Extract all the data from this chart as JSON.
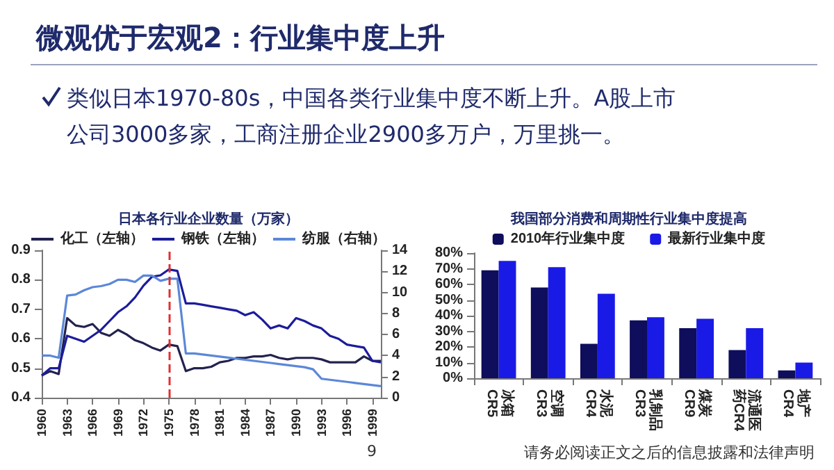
{
  "chart_data": [
    {
      "type": "other",
      "title": "微观优于宏观2：行业集中度上升",
      "annotations": [
        "类似日本1970-80s，中国各类行业集中度不断上升。A股上市公司3000多家，工商注册企业2900多万户，万里挑一。",
        "9",
        "请务必阅读正文之后的信息披露和法律声明"
      ]
    },
    {
      "type": "line",
      "title": "日本各行业企业数量（万家）",
      "x": [
        1960,
        1961,
        1962,
        1963,
        1964,
        1965,
        1966,
        1967,
        1968,
        1969,
        1970,
        1971,
        1972,
        1973,
        1974,
        1975,
        1976,
        1977,
        1978,
        1979,
        1980,
        1981,
        1982,
        1983,
        1984,
        1985,
        1986,
        1987,
        1988,
        1989,
        1990,
        1991,
        1992,
        1993,
        1994,
        1995,
        1996,
        1997,
        1998,
        1999,
        2000
      ],
      "series": [
        {
          "name": "化工（左轴）",
          "color": "#22224e",
          "values": [
            0.475,
            0.49,
            0.48,
            0.67,
            0.645,
            0.64,
            0.65,
            0.62,
            0.61,
            0.63,
            0.615,
            0.595,
            0.585,
            0.57,
            0.56,
            0.58,
            0.575,
            0.49,
            0.5,
            0.5,
            0.505,
            0.52,
            0.525,
            0.535,
            0.535,
            0.54,
            0.54,
            0.545,
            0.535,
            0.53,
            0.535,
            0.535,
            0.535,
            0.53,
            0.52,
            0.52,
            0.52,
            0.52,
            0.54,
            0.525,
            0.525
          ]
        },
        {
          "name": "钢铁（左轴）",
          "color": "#1c1c9c",
          "values": [
            0.475,
            0.5,
            0.5,
            0.61,
            0.6,
            0.59,
            0.61,
            0.63,
            0.66,
            0.69,
            0.71,
            0.74,
            0.78,
            0.81,
            0.815,
            0.835,
            0.83,
            0.72,
            0.72,
            0.715,
            0.71,
            0.705,
            0.7,
            0.695,
            0.68,
            0.69,
            0.665,
            0.635,
            0.645,
            0.635,
            0.67,
            0.66,
            0.645,
            0.635,
            0.61,
            0.6,
            0.58,
            0.575,
            0.57,
            0.525,
            0.52
          ]
        },
        {
          "name": "纺服（右轴）",
          "color": "#5b87d8",
          "axis": "y2",
          "values": [
            4,
            4,
            3.8,
            9.7,
            9.8,
            10.2,
            10.5,
            10.6,
            10.8,
            11.2,
            11.2,
            11,
            11.6,
            11.6,
            11.1,
            11.3,
            11.3,
            4.2,
            4.2,
            4.1,
            4,
            3.9,
            3.8,
            3.7,
            3.6,
            3.5,
            3.4,
            3.3,
            3.2,
            3.1,
            3,
            2.9,
            2.7,
            1.8,
            1.7,
            1.6,
            1.5,
            1.4,
            1.3,
            1.2,
            1.1
          ]
        }
      ],
      "xlim": [
        1960,
        2000
      ],
      "xticks": [
        1960,
        1963,
        1966,
        1969,
        1972,
        1975,
        1978,
        1981,
        1984,
        1987,
        1990,
        1993,
        1996,
        1999
      ],
      "ylim": [
        0.4,
        0.9
      ],
      "yticks": [
        0.4,
        0.5,
        0.6,
        0.7,
        0.8,
        0.9
      ],
      "y2lim": [
        0,
        14
      ],
      "y2ticks": [
        0,
        2,
        4,
        6,
        8,
        10,
        12,
        14
      ],
      "ref_lines": [
        {
          "axis": "x",
          "value": 1975,
          "color": "#e03030",
          "line_style": "dashed"
        }
      ],
      "legend": "top",
      "grid": false
    },
    {
      "type": "bar",
      "title": "我国部分消费和周期性行业集中度提高",
      "categories": [
        "冰箱CR5",
        "空调CR3",
        "水泥CR4",
        "乳制品CR3",
        "煤炭CR9",
        "流通医药CR4",
        "地产CR4"
      ],
      "series": [
        {
          "name": "2010年行业集中度",
          "color": "#0e0e5c",
          "values": [
            69,
            58,
            22,
            37,
            32,
            18,
            5
          ]
        },
        {
          "name": "最新行业集中度",
          "color": "#1a1ae6",
          "values": [
            75,
            71,
            54,
            39,
            38,
            32,
            10
          ]
        }
      ],
      "ylim": [
        0,
        80
      ],
      "yticks": [
        {
          "value": 0,
          "label": "0%"
        },
        {
          "value": 10,
          "label": "10%"
        },
        {
          "value": 20,
          "label": "20%"
        },
        {
          "value": 30,
          "label": "30%"
        },
        {
          "value": 40,
          "label": "40%"
        },
        {
          "value": 50,
          "label": "50%"
        },
        {
          "value": 60,
          "label": "60%"
        },
        {
          "value": 70,
          "label": "70%"
        },
        {
          "value": 80,
          "label": "80%"
        }
      ],
      "legend": "top",
      "grid": false
    }
  ]
}
